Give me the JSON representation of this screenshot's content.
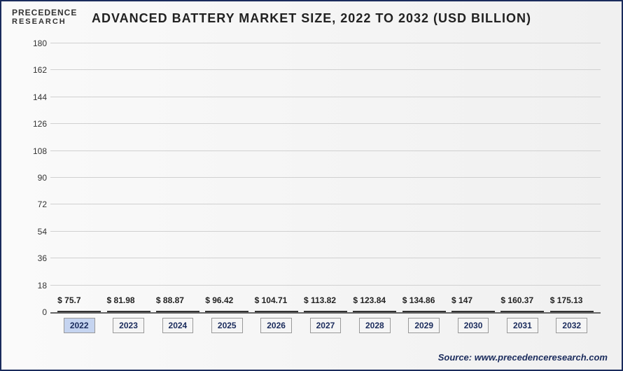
{
  "logo": {
    "line1": "PRECEDENCE",
    "line2": "RESEARCH"
  },
  "title": "ADVANCED BATTERY MARKET SIZE, 2022 TO 2032 (USD BILLION)",
  "chart": {
    "type": "bar",
    "categories": [
      "2022",
      "2023",
      "2024",
      "2025",
      "2026",
      "2027",
      "2028",
      "2029",
      "2030",
      "2031",
      "2032"
    ],
    "values": [
      75.7,
      81.98,
      88.87,
      96.42,
      104.71,
      113.82,
      123.84,
      134.86,
      147,
      160.37,
      175.13
    ],
    "value_labels": [
      "$ 75.7",
      "$ 81.98",
      "$ 88.87",
      "$ 96.42",
      "$ 104.71",
      "$ 113.82",
      "$ 123.84",
      "$ 134.86",
      "$ 147",
      "$ 160.37",
      "$ 175.13"
    ],
    "bar_colors": [
      "#b8c5e0",
      "#5a6a9c",
      "#4a5a8c",
      "#3d4e82",
      "#2d3e72",
      "#1e2f63",
      "#162654",
      "#0f1d45",
      "#0a1638",
      "#06102c",
      "#030a20"
    ],
    "highlighted_category_index": 0,
    "ymax": 180,
    "yticks": [
      0,
      18,
      36,
      54,
      72,
      90,
      108,
      126,
      144,
      162,
      180
    ],
    "grid_color": "#d0d0d0",
    "background": "#ffffff",
    "border_color": "#1a2b5c"
  },
  "source": "Source: www.precedenceresearch.com"
}
